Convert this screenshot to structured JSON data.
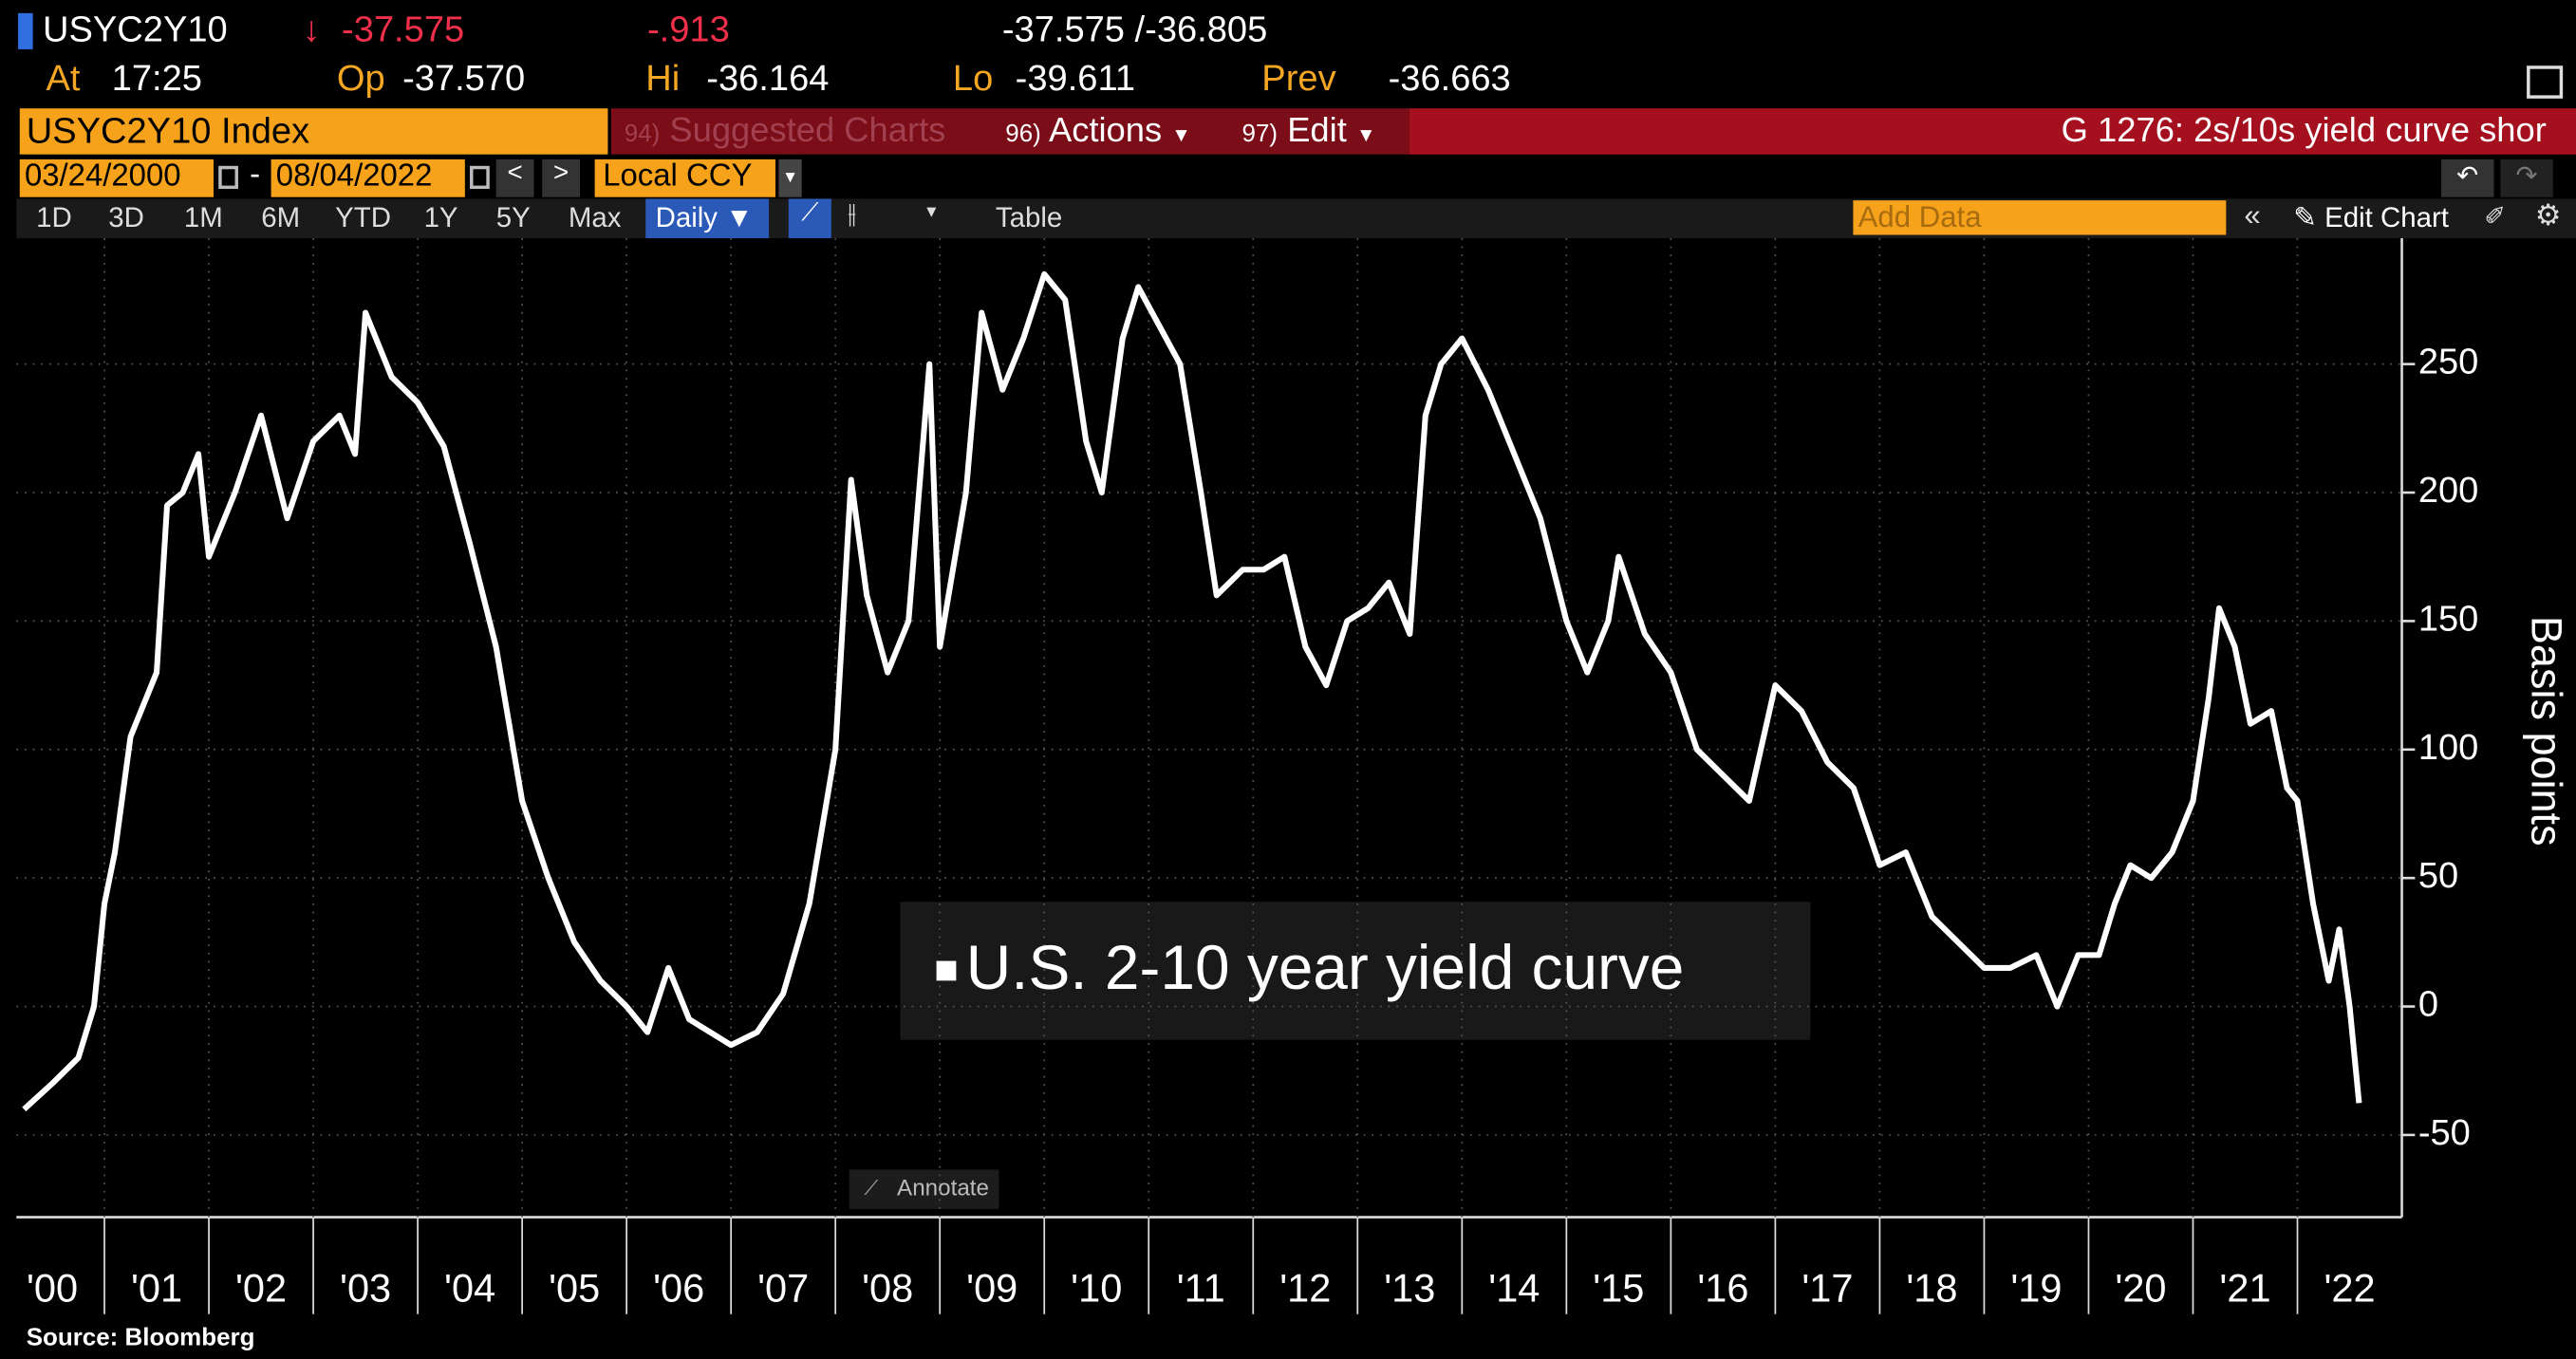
{
  "header": {
    "ticker": "USYC2Y10",
    "arrow": "↓",
    "last": "-37.575",
    "change": "-.913",
    "quote": "-37.575 /-36.805",
    "time_label": "At",
    "time": "17:25",
    "open_label": "Op",
    "open": "-37.570",
    "high_label": "Hi",
    "high": "-36.164",
    "low_label": "Lo",
    "low": "-39.611",
    "prev_label": "Prev",
    "prev": "-36.663"
  },
  "menu": {
    "security": "USYC2Y10 Index",
    "items": [
      {
        "code": "94)",
        "label": "Suggested Charts"
      },
      {
        "code": "96)",
        "label": "Actions"
      },
      {
        "code": "97)",
        "label": "Edit"
      }
    ],
    "title": "G 1276: 2s/10s yield curve shor"
  },
  "range": {
    "start": "03/24/2000",
    "dash": "-",
    "end": "08/04/2022",
    "currency": "Local CCY"
  },
  "toolbar": {
    "periods": [
      "1D",
      "3D",
      "1M",
      "6M",
      "YTD",
      "1Y",
      "5Y",
      "Max"
    ],
    "frequency": "Daily ▼",
    "table": "Table",
    "add_data": "Add Data",
    "edit_chart": "Edit Chart"
  },
  "annotate": "Annotate",
  "chart_data": {
    "type": "line",
    "ylabel": "Basis points",
    "source": "Source: Bloomberg",
    "legend": "center",
    "grid": true,
    "x": [
      2000.23,
      2000.5,
      2000.75,
      2000.9,
      2001.0,
      2001.1,
      2001.25,
      2001.5,
      2001.6,
      2001.75,
      2001.9,
      2002.0,
      2002.25,
      2002.5,
      2002.75,
      2003.0,
      2003.25,
      2003.4,
      2003.5,
      2003.75,
      2004.0,
      2004.25,
      2004.5,
      2004.75,
      2005.0,
      2005.25,
      2005.5,
      2005.75,
      2006.0,
      2006.2,
      2006.4,
      2006.6,
      2006.8,
      2007.0,
      2007.25,
      2007.5,
      2007.75,
      2008.0,
      2008.15,
      2008.3,
      2008.5,
      2008.7,
      2008.9,
      2009.0,
      2009.25,
      2009.4,
      2009.6,
      2009.8,
      2010.0,
      2010.2,
      2010.4,
      2010.55,
      2010.75,
      2010.9,
      2011.1,
      2011.3,
      2011.5,
      2011.65,
      2011.9,
      2012.1,
      2012.3,
      2012.5,
      2012.7,
      2012.9,
      2013.1,
      2013.3,
      2013.5,
      2013.65,
      2013.8,
      2014.0,
      2014.25,
      2014.5,
      2014.75,
      2015.0,
      2015.2,
      2015.4,
      2015.5,
      2015.75,
      2016.0,
      2016.25,
      2016.5,
      2016.75,
      2017.0,
      2017.25,
      2017.5,
      2017.75,
      2018.0,
      2018.25,
      2018.5,
      2018.75,
      2019.0,
      2019.25,
      2019.5,
      2019.7,
      2019.9,
      2020.1,
      2020.25,
      2020.4,
      2020.6,
      2020.8,
      2021.0,
      2021.15,
      2021.25,
      2021.4,
      2021.55,
      2021.75,
      2021.9,
      2022.0,
      2022.15,
      2022.3,
      2022.4,
      2022.5,
      2022.59
    ],
    "series": [
      {
        "name": "U.S. 2-10 year yield curve",
        "color": "#ffffff",
        "values": [
          -40,
          -30,
          -20,
          0,
          40,
          60,
          105,
          130,
          195,
          200,
          215,
          175,
          200,
          230,
          190,
          220,
          230,
          215,
          270,
          245,
          235,
          218,
          180,
          140,
          80,
          50,
          25,
          10,
          0,
          -10,
          15,
          -5,
          -10,
          -15,
          -10,
          5,
          40,
          100,
          205,
          160,
          130,
          150,
          250,
          140,
          200,
          270,
          240,
          260,
          285,
          275,
          220,
          200,
          260,
          280,
          265,
          250,
          200,
          160,
          170,
          170,
          175,
          140,
          125,
          150,
          155,
          165,
          145,
          230,
          250,
          260,
          240,
          215,
          190,
          150,
          130,
          150,
          175,
          145,
          130,
          100,
          90,
          80,
          125,
          115,
          95,
          85,
          55,
          60,
          35,
          25,
          15,
          15,
          20,
          0,
          20,
          20,
          40,
          55,
          50,
          60,
          80,
          120,
          155,
          140,
          110,
          115,
          85,
          80,
          40,
          10,
          30,
          0,
          -37.575
        ]
      }
    ],
    "xlim": [
      2000,
      2023
    ],
    "xticks": [
      {
        "value": 2000,
        "label": "'00"
      },
      {
        "value": 2001,
        "label": "'01"
      },
      {
        "value": 2002,
        "label": "'02"
      },
      {
        "value": 2003,
        "label": "'03"
      },
      {
        "value": 2004,
        "label": "'04"
      },
      {
        "value": 2005,
        "label": "'05"
      },
      {
        "value": 2006,
        "label": "'06"
      },
      {
        "value": 2007,
        "label": "'07"
      },
      {
        "value": 2008,
        "label": "'08"
      },
      {
        "value": 2009,
        "label": "'09"
      },
      {
        "value": 2010,
        "label": "'10"
      },
      {
        "value": 2011,
        "label": "'11"
      },
      {
        "value": 2012,
        "label": "'12"
      },
      {
        "value": 2013,
        "label": "'13"
      },
      {
        "value": 2014,
        "label": "'14"
      },
      {
        "value": 2015,
        "label": "'15"
      },
      {
        "value": 2016,
        "label": "'16"
      },
      {
        "value": 2017,
        "label": "'17"
      },
      {
        "value": 2018,
        "label": "'18"
      },
      {
        "value": 2019,
        "label": "'19"
      },
      {
        "value": 2020,
        "label": "'20"
      },
      {
        "value": 2021,
        "label": "'21"
      },
      {
        "value": 2022,
        "label": "'22"
      }
    ],
    "ylim": [
      -82,
      299
    ],
    "yticks": [
      -50,
      0,
      50,
      100,
      150,
      200,
      250
    ]
  }
}
